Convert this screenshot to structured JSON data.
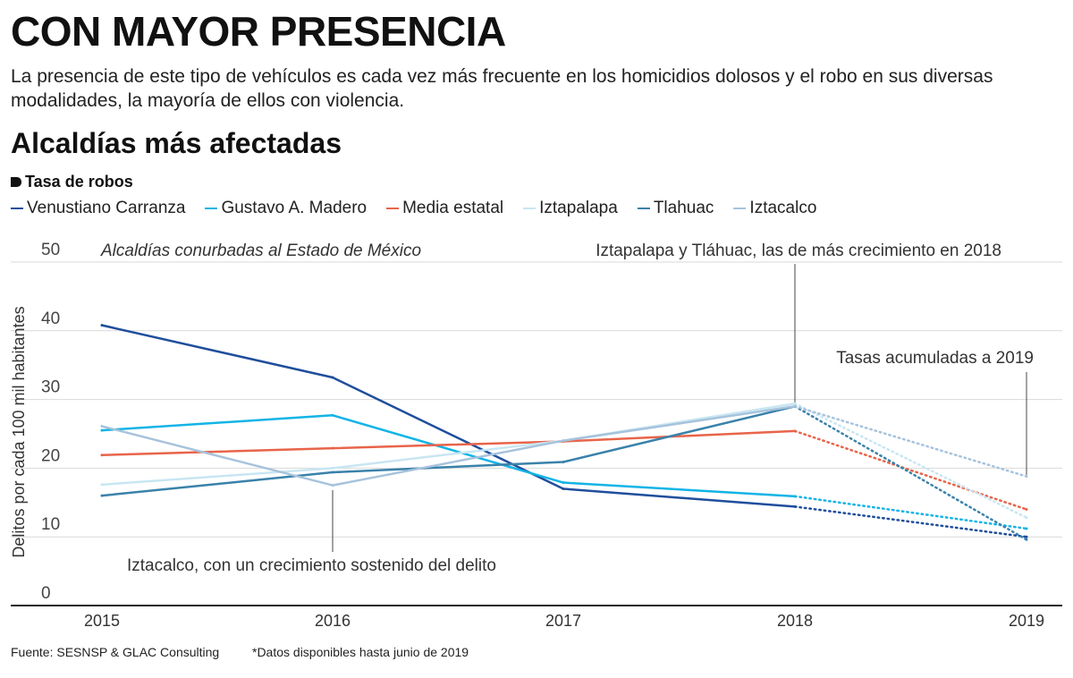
{
  "header": {
    "title": "CON MAYOR PRESENCIA",
    "subtitle": "La presencia de este tipo de vehículos es cada vez más frecuente en los homicidios dolosos y el robo en sus diversas modalidades, la mayoría de ellos con violencia.",
    "section_title": "Alcaldías más afectadas",
    "measure_label": "Tasa de robos"
  },
  "footer": {
    "source": "Fuente: SESNSP & GLAC Consulting",
    "note": "*Datos disponibles hasta junio de 2019"
  },
  "chart_data": {
    "type": "line",
    "title": "Alcaldías más afectadas",
    "subtitle": "Tasa de robos",
    "xlabel": "",
    "ylabel": "Delitos por cada 100 mil habitantes",
    "x": [
      "2015",
      "2016",
      "2017",
      "2018",
      "2019"
    ],
    "yticks": [
      "0",
      "10",
      "20",
      "30",
      "40",
      "50"
    ],
    "ylim": [
      0,
      50
    ],
    "grid": true,
    "legend_position": "top",
    "solid_until": "2018",
    "dotted_segment": "2018-2019",
    "series": [
      {
        "name": "Venustiano Carranza",
        "color": "#1f4e9c",
        "values": [
          40.8,
          33.2,
          17.0,
          14.4,
          10.0
        ]
      },
      {
        "name": "Gustavo A. Madero",
        "color": "#12b4e6",
        "values": [
          25.5,
          27.7,
          17.9,
          15.9,
          11.2
        ]
      },
      {
        "name": "Media estatal",
        "color": "#e8644a",
        "values": [
          21.9,
          22.9,
          23.9,
          25.4,
          14.0
        ]
      },
      {
        "name": "Iztapalapa",
        "color": "#c8e6f2",
        "values": [
          17.6,
          20.0,
          24.0,
          29.4,
          12.8
        ]
      },
      {
        "name": "Tlahuac",
        "color": "#3a82aa",
        "values": [
          16.0,
          19.4,
          20.9,
          29.0,
          9.6
        ]
      },
      {
        "name": "Iztacalco",
        "color": "#a7c3dc",
        "values": [
          26.1,
          17.5,
          24.0,
          29.0,
          18.8
        ]
      }
    ],
    "annotations": {
      "top_left": "Alcaldías conurbadas al Estado de México",
      "top_right": "Iztapalapa y Tláhuac, las de más crecimiento en 2018",
      "cumulative": "Tasas acumuladas a 2019",
      "iztacalco": "Iztacalco, con un crecimiento sostenido del delito"
    }
  }
}
